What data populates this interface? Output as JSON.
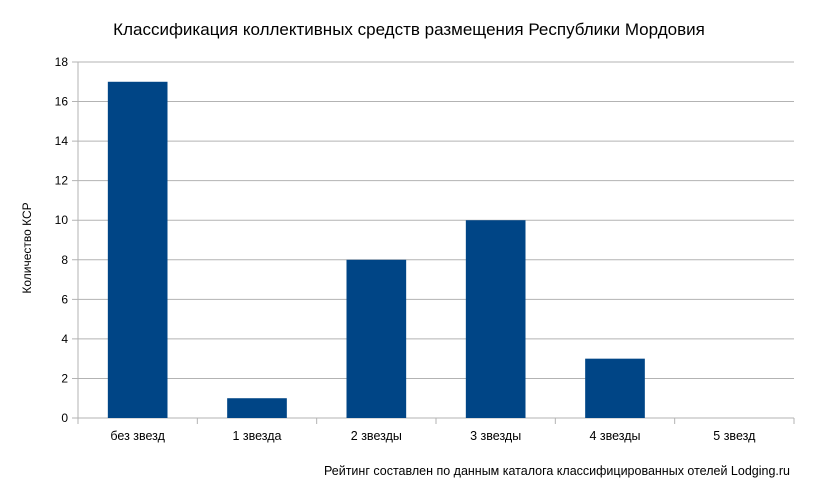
{
  "chart_data": {
    "type": "bar",
    "title": "Классификация коллективных средств размещения Республики Мордовия",
    "xlabel": "",
    "ylabel": "Количество КСР",
    "categories": [
      "без звезд",
      "1 звезда",
      "2 звезды",
      "3 звезды",
      "4 звезды",
      "5 звезд"
    ],
    "values": [
      17,
      1,
      8,
      10,
      3,
      0
    ],
    "ylim": [
      0,
      18
    ],
    "yticks": [
      "0",
      "2",
      "4",
      "6",
      "8",
      "10",
      "12",
      "14",
      "16",
      "18"
    ],
    "grid": true,
    "legend": "none",
    "bar_color": "#004586",
    "source_note": "Рейтинг составлен по данным каталога классифицированных отелей Lodging.ru"
  }
}
